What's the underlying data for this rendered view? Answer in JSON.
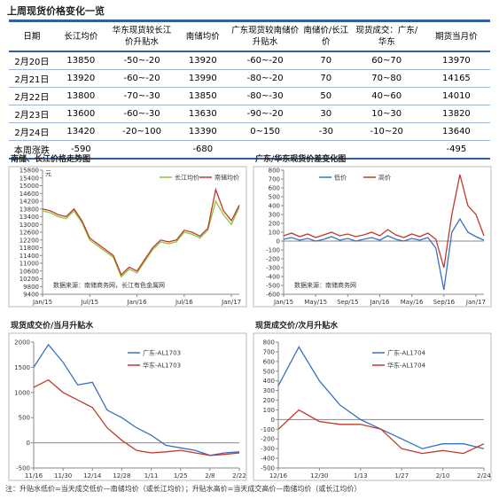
{
  "header": {
    "title": "上周现货价格变化一览"
  },
  "table": {
    "columns": [
      "日期",
      "长江均价",
      "华东现货较长江价升贴水",
      "南储均价",
      "广东现货较南储价升贴水",
      "南储价/长江价",
      "现货成交：广东/华东",
      "期货当月价"
    ],
    "rows": [
      [
        "2月20日",
        "13850",
        "-50~-20",
        "13920",
        "-60~-20",
        "70",
        "60~70",
        "13970"
      ],
      [
        "2月21日",
        "13920",
        "-60~-20",
        "13990",
        "-80~-20",
        "70",
        "70~80",
        "14165"
      ],
      [
        "2月22日",
        "13800",
        "-70~-30",
        "13850",
        "-80~-30",
        "50",
        "40~60",
        "14010"
      ],
      [
        "2月23日",
        "13600",
        "-60~-30",
        "13630",
        "-90~-20",
        "30",
        "10~30",
        "13820"
      ],
      [
        "2月24日",
        "13420",
        "-20~100",
        "13390",
        "0~150",
        "-30",
        "-10~20",
        "13640"
      ],
      [
        "本周涨跌",
        "-590",
        null,
        "-680",
        null,
        null,
        null,
        "-495"
      ]
    ]
  },
  "chart_data": [
    {
      "type": "line",
      "title": "南储、长江价格走势图",
      "y_label": "元",
      "annotation": "数据来源：南储商务网，长江有色金属网",
      "legend": "top-right",
      "categories": [
        "Jan/15",
        null,
        null,
        null,
        null,
        null,
        "Jul/15",
        null,
        null,
        null,
        null,
        null,
        "Jan/16",
        null,
        null,
        null,
        null,
        null,
        "Jul/16",
        null,
        null,
        null,
        null,
        null,
        "Jan/17",
        null
      ],
      "series": [
        {
          "name": "长江均价",
          "color": "#8fc43f",
          "values": [
            13700,
            13600,
            13400,
            13300,
            13700,
            13100,
            12200,
            11900,
            11600,
            11300,
            10300,
            10700,
            10500,
            11100,
            11700,
            12100,
            12000,
            12100,
            12600,
            12500,
            12300,
            12700,
            14200,
            13500,
            13000,
            13900
          ]
        },
        {
          "name": "南储均价",
          "color": "#c0392b",
          "values": [
            13800,
            13700,
            13500,
            13400,
            13800,
            13200,
            12300,
            12000,
            11700,
            11400,
            10400,
            10800,
            10600,
            11200,
            11800,
            12200,
            12100,
            12200,
            12700,
            12600,
            12400,
            12800,
            14800,
            13700,
            13200,
            14000
          ]
        }
      ],
      "ylim": [
        9400,
        15800
      ],
      "yticks": [
        9400,
        9800,
        10200,
        10600,
        11000,
        11400,
        11800,
        12200,
        12600,
        13000,
        13400,
        13800,
        14200,
        14600,
        15000,
        15400,
        15800
      ]
    },
    {
      "type": "line",
      "title": "广东/华东现货价差变化图",
      "annotation": "数据来源：南储商务网",
      "legend": "top",
      "categories": [
        "Jan/15",
        null,
        null,
        null,
        "May/15",
        null,
        null,
        null,
        "Sep/15",
        null,
        null,
        null,
        "Jan/16",
        null,
        null,
        null,
        "May/16",
        null,
        null,
        null,
        "Sep/16",
        null,
        null,
        null,
        "Jan/17",
        null
      ],
      "series": [
        {
          "name": "低价",
          "color": "#3a6fc4",
          "values": [
            20,
            40,
            10,
            30,
            0,
            20,
            50,
            10,
            30,
            0,
            20,
            40,
            10,
            60,
            20,
            0,
            30,
            10,
            40,
            -80,
            -550,
            100,
            250,
            100,
            50,
            10
          ]
        },
        {
          "name": "高价",
          "color": "#c0392b",
          "values": [
            60,
            90,
            50,
            80,
            40,
            70,
            100,
            60,
            80,
            50,
            70,
            100,
            60,
            130,
            70,
            40,
            80,
            50,
            90,
            20,
            -300,
            300,
            750,
            400,
            300,
            60
          ]
        }
      ],
      "ylim": [
        -600,
        800
      ],
      "yticks": [
        -600,
        -500,
        -400,
        -300,
        -200,
        -100,
        0,
        100,
        200,
        300,
        400,
        500,
        600,
        700,
        800
      ]
    },
    {
      "type": "line",
      "title": "现货成交价/当月升贴水",
      "legend": "right",
      "categories": [
        "11/16",
        null,
        "11/30",
        null,
        "12/14",
        null,
        "12/28",
        null,
        "1/11",
        null,
        "1/25",
        null,
        "2/8",
        null,
        "2/22"
      ],
      "series": [
        {
          "name": "广东-AL1703",
          "color": "#3a6fc4",
          "values": [
            1500,
            1950,
            1600,
            1150,
            1200,
            650,
            500,
            300,
            150,
            -50,
            -100,
            -150,
            -250,
            -200,
            -180
          ]
        },
        {
          "name": "华东-AL1703",
          "color": "#c0392b",
          "values": [
            1100,
            1250,
            1000,
            850,
            700,
            300,
            50,
            -150,
            -200,
            -180,
            -150,
            -200,
            -250,
            -230,
            -200
          ]
        }
      ],
      "ylim": [
        -500,
        2000
      ],
      "yticks": [
        -500,
        0,
        500,
        1000,
        1500,
        2000
      ]
    },
    {
      "type": "line",
      "title": "现货成交价/次月升贴水",
      "legend": "right",
      "categories": [
        "12/16",
        null,
        "12/30",
        null,
        "1/13",
        null,
        "1/27",
        null,
        "2/10",
        null,
        "2/24"
      ],
      "series": [
        {
          "name": "广东-AL1704",
          "color": "#3a6fc4",
          "values": [
            350,
            750,
            400,
            150,
            0,
            -100,
            -200,
            -300,
            -250,
            -250,
            -300
          ]
        },
        {
          "name": "华东-AL1704",
          "color": "#c0392b",
          "values": [
            -100,
            100,
            -20,
            -50,
            -50,
            -100,
            -300,
            -350,
            -320,
            -350,
            -250
          ]
        }
      ],
      "ylim": [
        -500,
        800
      ],
      "yticks": [
        -500,
        -400,
        -300,
        -200,
        -100,
        0,
        100,
        200,
        300,
        400,
        500,
        600,
        700,
        800
      ]
    }
  ],
  "footnote": "注：升贴水低价=当天成交低价—南储均价（或长江均价）；升贴水高价=当天成交高价—南储均价（或长江均价）"
}
